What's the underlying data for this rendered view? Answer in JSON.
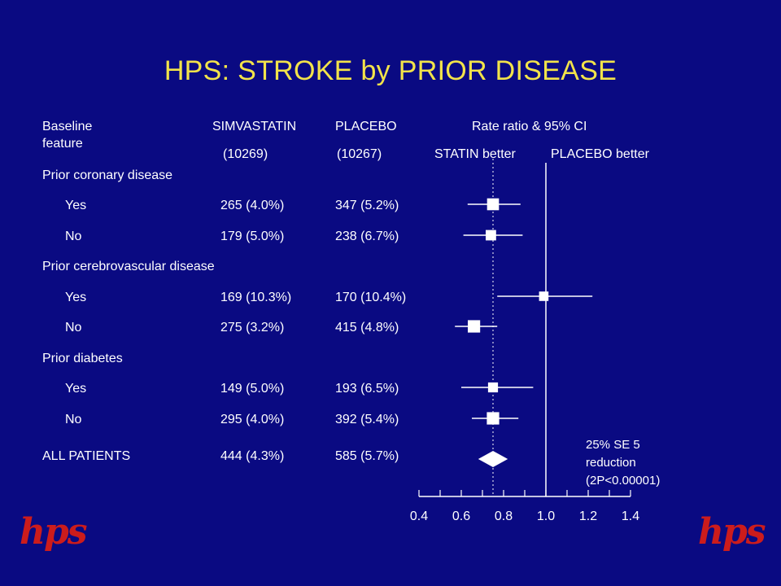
{
  "title": "HPS: STROKE by PRIOR DISEASE",
  "headers": {
    "feature_line1": "Baseline",
    "feature_line2": "feature",
    "simva": "SIMVASTATIN",
    "simva_n": "(10269)",
    "placebo": "PLACEBO",
    "placebo_n": "(10267)",
    "rr": "Rate ratio & 95% CI",
    "statin_better": "STATIN better",
    "placebo_better": "PLACEBO better"
  },
  "groups": {
    "coronary": "Prior coronary disease",
    "cerebro": "Prior cerebrovascular disease",
    "diabetes": "Prior diabetes"
  },
  "rows": {
    "cor_yes": {
      "label": "Yes",
      "simva": "265 (4.0%)",
      "placebo": "347 (5.2%)"
    },
    "cor_no": {
      "label": "No",
      "simva": "179 (5.0%)",
      "placebo": "238 (6.7%)"
    },
    "cer_yes": {
      "label": "Yes",
      "simva": "169 (10.3%)",
      "placebo": "170 (10.4%)"
    },
    "cer_no": {
      "label": "No",
      "simva": "275 (3.2%)",
      "placebo": "415 (4.8%)"
    },
    "dia_yes": {
      "label": "Yes",
      "simva": "149 (5.0%)",
      "placebo": "193 (6.5%)"
    },
    "dia_no": {
      "label": "No",
      "simva": "295 (4.0%)",
      "placebo": "392 (5.4%)"
    },
    "all": {
      "label": "ALL PATIENTS",
      "simva": "444 (4.3%)",
      "placebo": "585 (5.7%)"
    }
  },
  "summary_note": {
    "line1": "25% SE 5",
    "line2": "reduction",
    "line3": "(2P<0.00001)"
  },
  "logo_text": "hps",
  "colors": {
    "background": "#0a0a82",
    "title": "#f2e34a",
    "text": "#ffffff",
    "logo": "#cc1c1c"
  },
  "chart_data": {
    "type": "forest",
    "xlabel": "",
    "xlim": [
      0.4,
      1.4
    ],
    "xticks": [
      0.4,
      0.6,
      0.8,
      1.0,
      1.2,
      1.4
    ],
    "xtick_labels": [
      "0.4",
      "0.6",
      "0.8",
      "1.0",
      "1.2",
      "1.4"
    ],
    "reference_line": 1.0,
    "overall_line": 0.75,
    "points": [
      {
        "key": "cor_yes",
        "rr": 0.75,
        "lo": 0.63,
        "hi": 0.88,
        "weight": 0.55
      },
      {
        "key": "cor_no",
        "rr": 0.74,
        "lo": 0.61,
        "hi": 0.89,
        "weight": 0.4
      },
      {
        "key": "cer_yes",
        "rr": 0.99,
        "lo": 0.77,
        "hi": 1.22,
        "weight": 0.3
      },
      {
        "key": "cer_no",
        "rr": 0.66,
        "lo": 0.57,
        "hi": 0.77,
        "weight": 0.6
      },
      {
        "key": "dia_yes",
        "rr": 0.75,
        "lo": 0.6,
        "hi": 0.94,
        "weight": 0.35
      },
      {
        "key": "dia_no",
        "rr": 0.75,
        "lo": 0.65,
        "hi": 0.87,
        "weight": 0.6
      }
    ],
    "overall": {
      "key": "all",
      "rr": 0.75,
      "lo": 0.68,
      "hi": 0.82
    }
  }
}
